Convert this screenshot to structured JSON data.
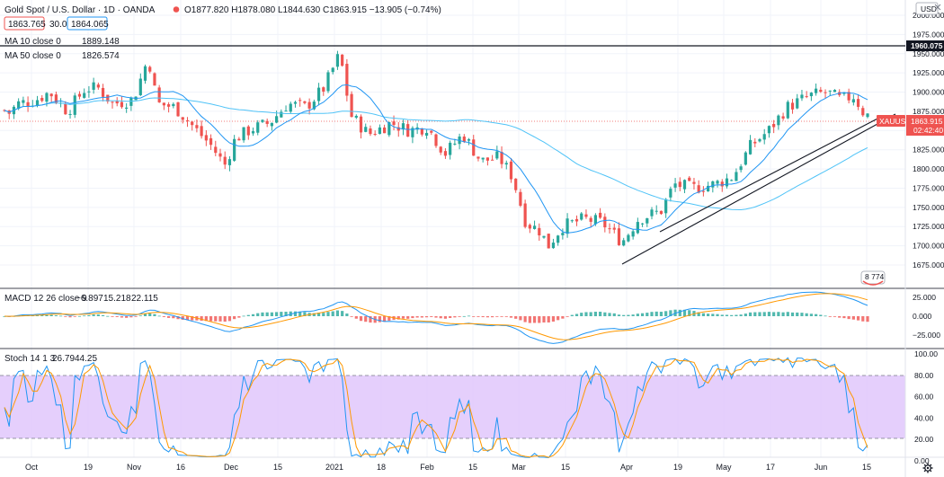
{
  "header": {
    "title": "Gold Spot / U.S. Dollar · 1D · OANDA",
    "ohlc": "O1877.820 H1878.080 L1844.630 C1863.915 −13.905 (−0.74%)",
    "bid": "1863.765",
    "spread": "30.0",
    "ask": "1864.065",
    "ma10_label": "MA 10 close 0",
    "ma10_value": "1889.148",
    "ma50_label": "MA 50 close 0",
    "ma50_value": "1826.574"
  },
  "currency": "USD",
  "price_axis": {
    "ticks": [
      "2000.000",
      "1975.000",
      "1950.000",
      "1925.000",
      "1900.000",
      "1875.000",
      "1850.000",
      "1825.000",
      "1800.000",
      "1775.000",
      "1750.000",
      "1725.000",
      "1700.000",
      "1675.000"
    ],
    "hline_value": "1960.075",
    "symbol_tag": "XAUUSD",
    "last_price": "1863.915",
    "countdown": "02:42:40",
    "indicator_badge": "8 774"
  },
  "macd": {
    "label": "MACD 12 26 close 9",
    "v1": "−6.897",
    "v2": "15.218",
    "v3": "22.115",
    "ticks": [
      "25.000",
      "0.000",
      "−25.000"
    ]
  },
  "stoch": {
    "label": "Stoch 14 1 3",
    "k": "26.79",
    "d": "44.25",
    "ticks": [
      "100.00",
      "80.00",
      "60.00",
      "40.00",
      "20.00",
      "0.00"
    ]
  },
  "x_axis": [
    "Oct",
    "19",
    "Nov",
    "16",
    "Dec",
    "15",
    "2021",
    "18",
    "Feb",
    "15",
    "Mar",
    "15",
    "Apr",
    "19",
    "May",
    "17",
    "Jun",
    "15"
  ],
  "colors": {
    "up": "#26a69a",
    "down": "#ef5350",
    "ma10": "#2196f3",
    "ma50": "#4fc3f7",
    "signal": "#ff9800",
    "stoch_fill": "#e1c7fb"
  },
  "icons": {
    "settings": "gear-icon",
    "close": "close-icon"
  }
}
